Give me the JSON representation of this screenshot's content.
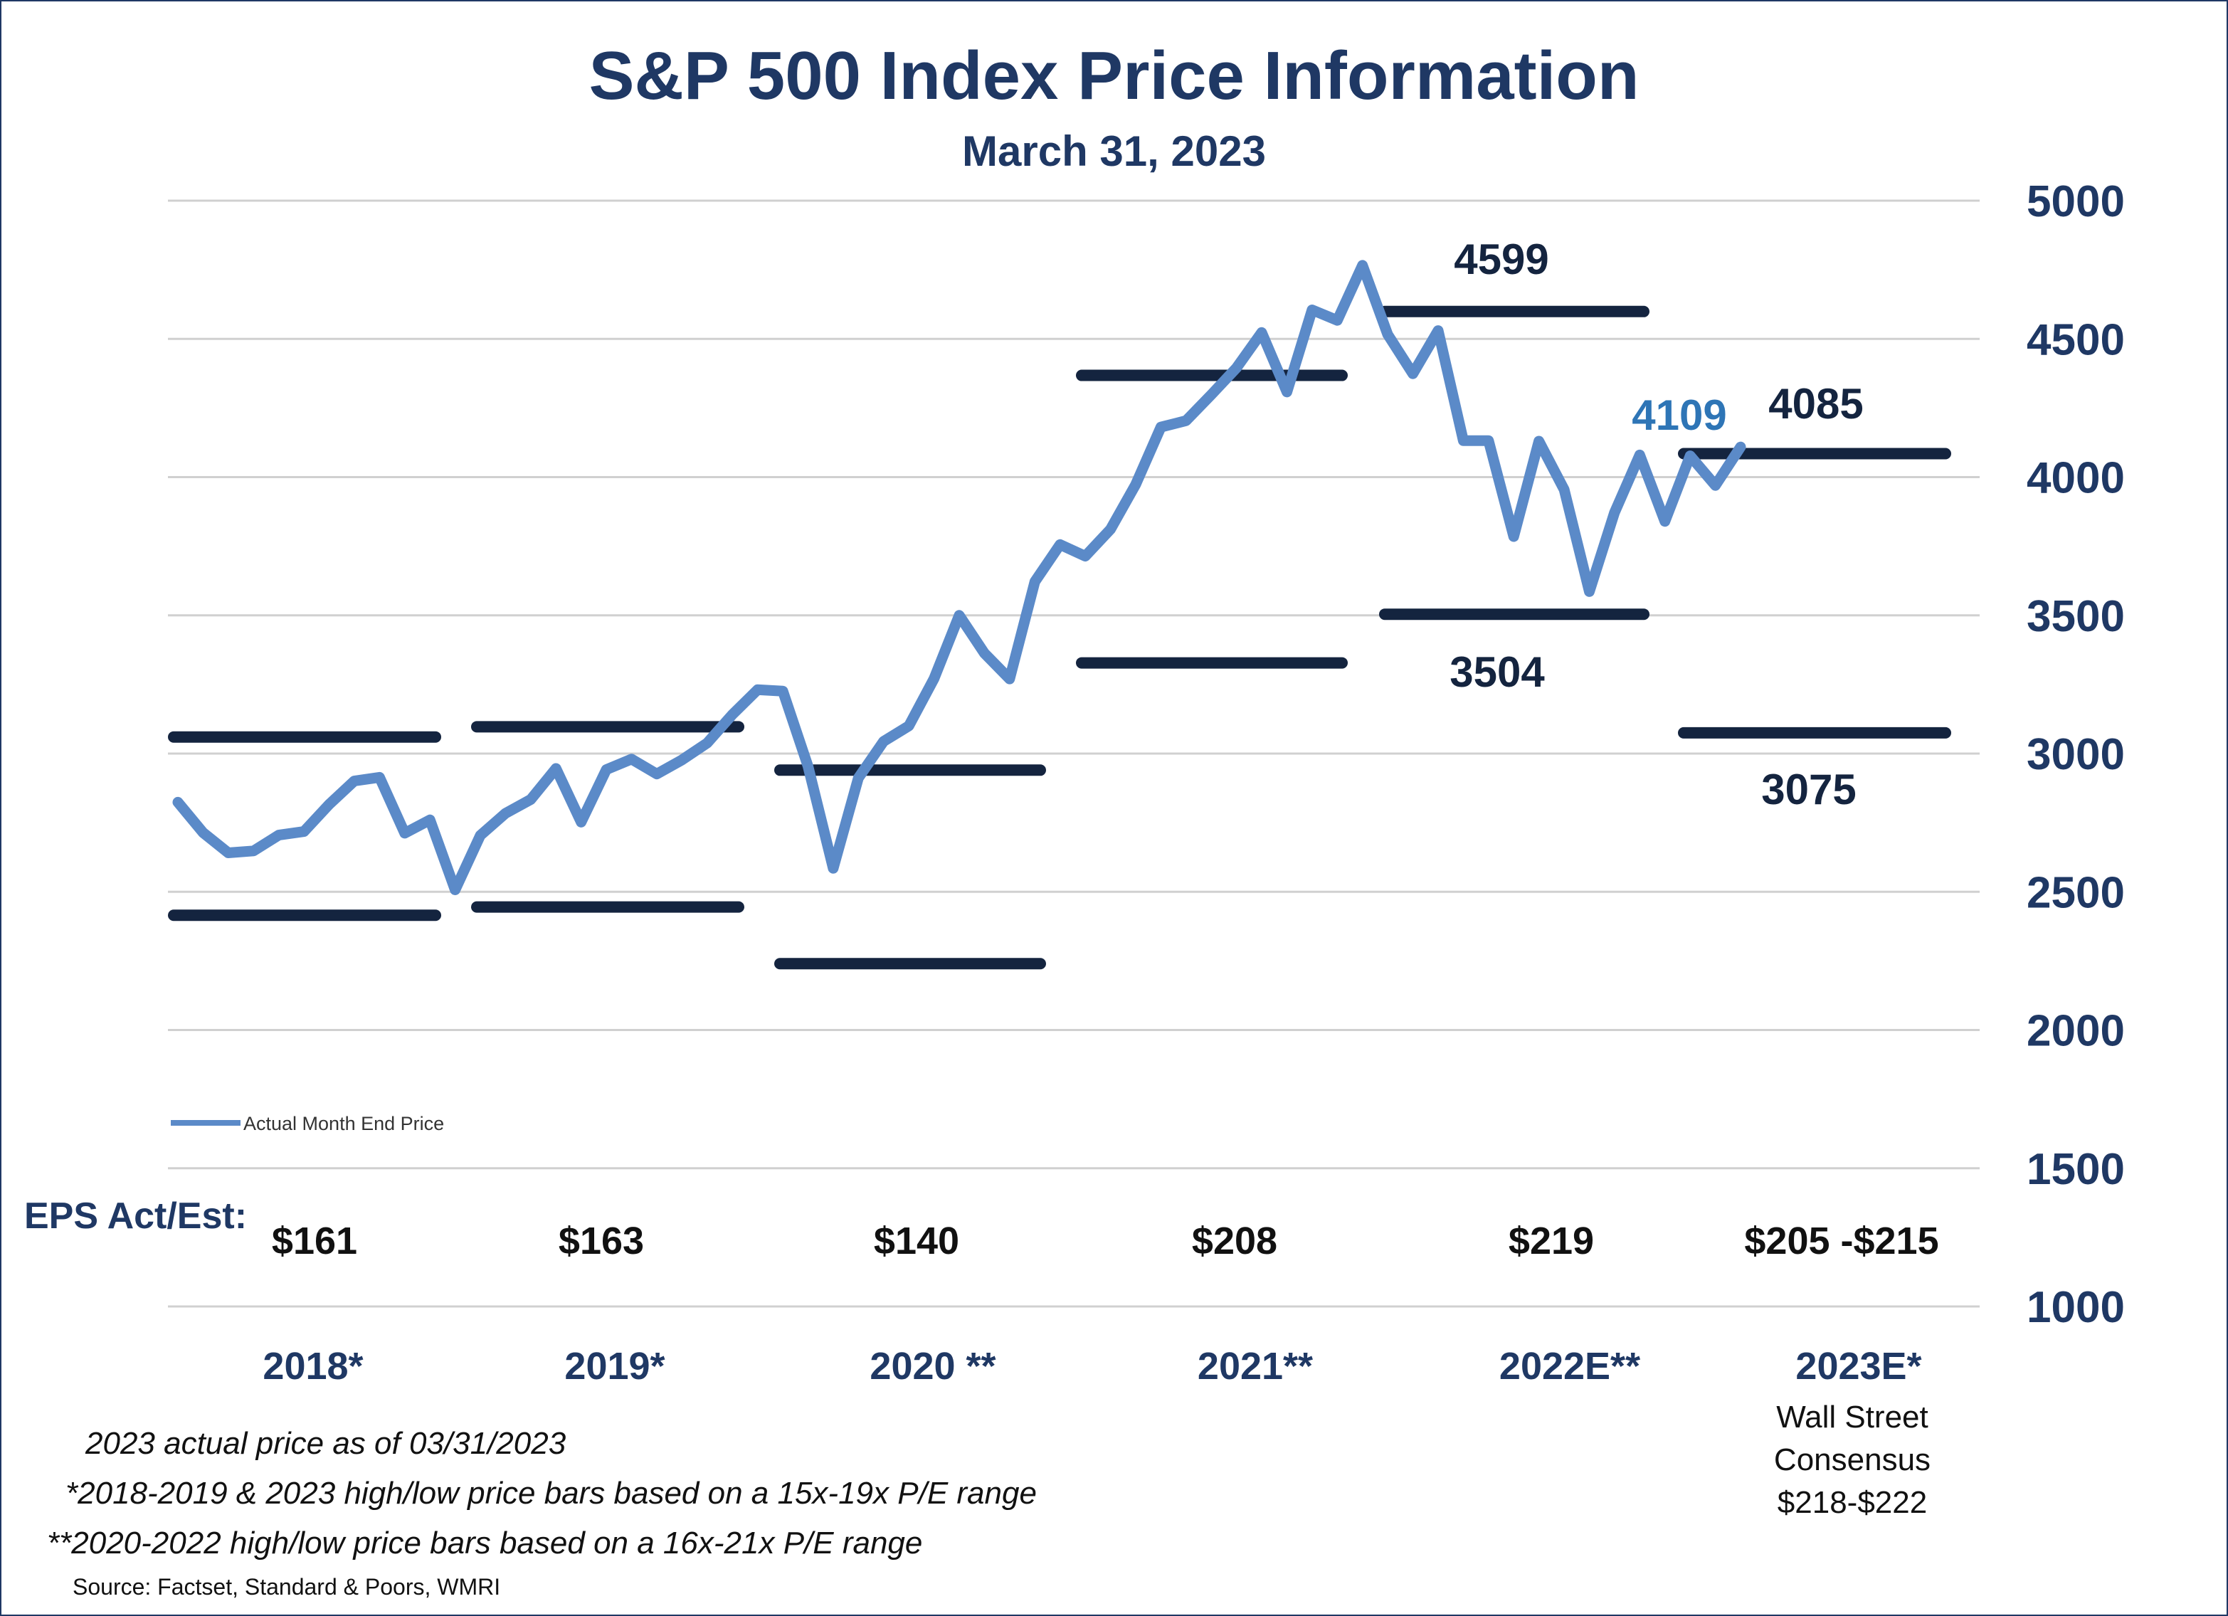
{
  "title": "S&P 500 Index Price Information",
  "subtitle": "March 31, 2023",
  "colors": {
    "title": "#1f3864",
    "line": "#5b8ac8",
    "bars": "#14243f",
    "highlight": "#2e75b6",
    "grid": "#d0d0d0",
    "axis_text": "#1f3864"
  },
  "chart_data": {
    "type": "line",
    "ylim": [
      1000,
      5000
    ],
    "yticks": [
      5000,
      4500,
      4000,
      3500,
      3000,
      2500,
      2000,
      1500,
      1000
    ],
    "grid": true,
    "y_axis_side": "right",
    "legend_position": "lower-left",
    "series": [
      {
        "name": "Actual Month End Price",
        "values": [
          2824,
          2714,
          2641,
          2648,
          2705,
          2718,
          2816,
          2901,
          2914,
          2712,
          2760,
          2507,
          2704,
          2784,
          2834,
          2946,
          2752,
          2942,
          2980,
          2926,
          2977,
          3038,
          3141,
          3231,
          3226,
          2954,
          2585,
          2912,
          3044,
          3100,
          3271,
          3500,
          3363,
          3270,
          3622,
          3756,
          3714,
          3811,
          3973,
          4181,
          4204,
          4298,
          4395,
          4523,
          4308,
          4605,
          4567,
          4766,
          4516,
          4374,
          4530,
          4132,
          4132,
          3785,
          4130,
          3955,
          3586,
          3872,
          4080,
          3840,
          4077,
          3970,
          4109
        ]
      }
    ],
    "annual_bars": [
      {
        "year_label": "2018*",
        "eps": "$161",
        "high": 3060,
        "low": 2415,
        "high_label": "",
        "low_label": ""
      },
      {
        "year_label": "2019*",
        "eps": "$163",
        "high": 3097,
        "low": 2445,
        "high_label": "",
        "low_label": ""
      },
      {
        "year_label": "2020 **",
        "eps": "$140",
        "high": 2940,
        "low": 2240,
        "high_label": "",
        "low_label": ""
      },
      {
        "year_label": "2021**",
        "eps": "$208",
        "high": 4368,
        "low": 3328,
        "high_label": "",
        "low_label": ""
      },
      {
        "year_label": "2022E**",
        "eps": "$219",
        "high": 4599,
        "low": 3504,
        "high_label": "4599",
        "low_label": "3504"
      },
      {
        "year_label": "2023E*",
        "eps": "$205 -$215",
        "high": 4085,
        "low": 3075,
        "high_label": "4085",
        "low_label": "3075"
      }
    ],
    "current_value_label": "4109"
  },
  "legend_label": "Actual Month End Price",
  "eps_heading": "EPS Act/Est:",
  "consensus": [
    "Wall Street",
    "Consensus",
    "$218-$222"
  ],
  "footnotes": [
    "2023 actual price as of 03/31/2023",
    "*2018-2019 & 2023 high/low price bars based on a 15x-19x P/E range",
    "**2020-2022 high/low price bars based on a 16x-21x P/E range"
  ],
  "source": "Source: Factset, Standard & Poors, WMRI"
}
